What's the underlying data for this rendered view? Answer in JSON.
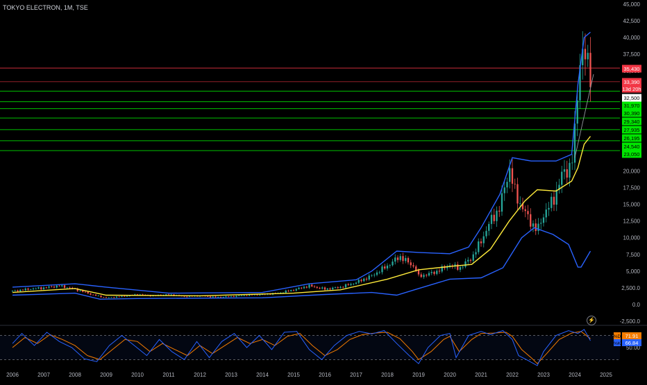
{
  "header": {
    "title": "TOKYO ELECTRON, 1M, TSE"
  },
  "colors": {
    "background": "#000000",
    "up_candle": "#26a69a",
    "down_candle": "#ef5350",
    "bollinger": "#2962ff",
    "ma": "#ffeb3b",
    "resistance": "#f23645",
    "support": "#00e600",
    "stoch_d": "#f57c00",
    "stoch_k": "#2962ff"
  },
  "icons": {
    "replay": "lightning-icon"
  },
  "chart_data": [
    {
      "type": "candlestick",
      "title": "TOKYO ELECTRON, 1M, TSE",
      "yticks": [
        "45,000",
        "42,500",
        "40,000",
        "37,500",
        "35,000",
        "32,500",
        "20,000",
        "17,500",
        "15,000",
        "12,500",
        "10,000",
        "7,500",
        "5,000",
        "2,500.0",
        "0.0",
        "-2,500.0"
      ],
      "ylim": [
        -2500,
        45000
      ],
      "xticks": [
        "2006",
        "2007",
        "2008",
        "2009",
        "2010",
        "2011",
        "2012",
        "2013",
        "2014",
        "2015",
        "2016",
        "2017",
        "2018",
        "2019",
        "2020",
        "2021",
        "2022",
        "2023",
        "2024",
        "2025"
      ],
      "xlim": [
        2006,
        2025.2
      ],
      "price_path": [
        [
          2006.0,
          2000
        ],
        [
          2006.5,
          2300
        ],
        [
          2007.0,
          2500
        ],
        [
          2007.5,
          2800
        ],
        [
          2008.0,
          2300
        ],
        [
          2008.6,
          1400
        ],
        [
          2009.0,
          1000
        ],
        [
          2009.5,
          1200
        ],
        [
          2010.0,
          1500
        ],
        [
          2010.5,
          1300
        ],
        [
          2011.0,
          1500
        ],
        [
          2011.5,
          1200
        ],
        [
          2012.0,
          1300
        ],
        [
          2012.5,
          1100
        ],
        [
          2013.0,
          1200
        ],
        [
          2013.5,
          1400
        ],
        [
          2014.0,
          1500
        ],
        [
          2014.5,
          1700
        ],
        [
          2015.0,
          2200
        ],
        [
          2015.5,
          2800
        ],
        [
          2016.0,
          2300
        ],
        [
          2016.5,
          2600
        ],
        [
          2017.0,
          3300
        ],
        [
          2017.5,
          4300
        ],
        [
          2018.0,
          5800
        ],
        [
          2018.4,
          7200
        ],
        [
          2018.9,
          5500
        ],
        [
          2019.0,
          4200
        ],
        [
          2019.5,
          4800
        ],
        [
          2020.0,
          5900
        ],
        [
          2020.3,
          5400
        ],
        [
          2020.7,
          7000
        ],
        [
          2021.0,
          9500
        ],
        [
          2021.3,
          12500
        ],
        [
          2021.6,
          14500
        ],
        [
          2021.9,
          20500
        ],
        [
          2022.1,
          16500
        ],
        [
          2022.5,
          13000
        ],
        [
          2022.8,
          11000
        ],
        [
          2023.0,
          13500
        ],
        [
          2023.3,
          15500
        ],
        [
          2023.6,
          19500
        ],
        [
          2023.9,
          21000
        ],
        [
          2024.0,
          25500
        ],
        [
          2024.1,
          33000
        ],
        [
          2024.2,
          38500
        ],
        [
          2024.35,
          36500
        ],
        [
          2024.5,
          35000
        ],
        [
          2024.58,
          33390
        ]
      ],
      "series": [
        {
          "name": "Bollinger Upper",
          "values": [
            [
              2006.0,
              2600
            ],
            [
              2008.0,
              3100
            ],
            [
              2009.0,
              2600
            ],
            [
              2011.0,
              1700
            ],
            [
              2014.0,
              1800
            ],
            [
              2015.5,
              3100
            ],
            [
              2017.0,
              3700
            ],
            [
              2017.5,
              5000
            ],
            [
              2018.3,
              8000
            ],
            [
              2019.0,
              7800
            ],
            [
              2020.0,
              7600
            ],
            [
              2020.6,
              8600
            ],
            [
              2021.0,
              11500
            ],
            [
              2021.6,
              16500
            ],
            [
              2022.0,
              22000
            ],
            [
              2022.6,
              21500
            ],
            [
              2023.4,
              21500
            ],
            [
              2023.9,
              22500
            ],
            [
              2024.1,
              33000
            ],
            [
              2024.3,
              40000
            ],
            [
              2024.5,
              40800
            ]
          ]
        },
        {
          "name": "Bollinger Lower",
          "values": [
            [
              2006.0,
              1400
            ],
            [
              2008.0,
              1700
            ],
            [
              2008.8,
              800
            ],
            [
              2010.0,
              900
            ],
            [
              2014.0,
              1000
            ],
            [
              2016.0,
              1500
            ],
            [
              2017.5,
              1800
            ],
            [
              2018.3,
              1400
            ],
            [
              2019.0,
              2400
            ],
            [
              2020.0,
              3800
            ],
            [
              2021.0,
              4000
            ],
            [
              2021.7,
              5500
            ],
            [
              2022.3,
              10000
            ],
            [
              2022.7,
              11500
            ],
            [
              2023.3,
              10500
            ],
            [
              2023.8,
              9000
            ],
            [
              2024.1,
              5600
            ],
            [
              2024.2,
              5600
            ],
            [
              2024.5,
              8000
            ]
          ]
        },
        {
          "name": "Moving Average",
          "values": [
            [
              2006.0,
              1800
            ],
            [
              2008.0,
              2400
            ],
            [
              2009.0,
              1400
            ],
            [
              2012.0,
              1300
            ],
            [
              2015.0,
              1700
            ],
            [
              2016.5,
              2200
            ],
            [
              2018.0,
              3800
            ],
            [
              2019.0,
              5200
            ],
            [
              2020.0,
              5700
            ],
            [
              2020.7,
              6000
            ],
            [
              2021.3,
              8300
            ],
            [
              2021.9,
              12500
            ],
            [
              2022.4,
              15500
            ],
            [
              2022.8,
              17200
            ],
            [
              2023.4,
              17000
            ],
            [
              2023.9,
              18500
            ],
            [
              2024.1,
              20500
            ],
            [
              2024.3,
              24000
            ],
            [
              2024.5,
              25200
            ]
          ]
        },
        {
          "name": "Trendline",
          "values": [
            [
              2024.0,
              22000
            ],
            [
              2024.6,
              34500
            ]
          ]
        }
      ],
      "horizontal_levels": [
        {
          "label": "35,430",
          "value": 35430,
          "kind": "resistance"
        },
        {
          "label": "33,390",
          "value": 33390,
          "kind": "current"
        },
        {
          "label": "13d 20h",
          "value": 33390,
          "kind": "countdown"
        },
        {
          "label": "32,500",
          "value": 32500,
          "kind": "tick"
        },
        {
          "label": "31,970",
          "value": 31970,
          "kind": "support"
        },
        {
          "label": "30,390",
          "value": 30390,
          "kind": "support"
        },
        {
          "label": "29,340",
          "value": 29340,
          "kind": "support"
        },
        {
          "label": "27,935",
          "value": 27935,
          "kind": "support"
        },
        {
          "label": "26,195",
          "value": 26195,
          "kind": "support"
        },
        {
          "label": "24,540",
          "value": 24540,
          "kind": "support"
        },
        {
          "label": "23,050",
          "value": 23050,
          "kind": "support"
        }
      ]
    },
    {
      "type": "line",
      "title": "",
      "ylim": [
        0,
        100
      ],
      "yticks": [
        "50.00"
      ],
      "bands": [
        80,
        20
      ],
      "series": [
        {
          "name": "%D",
          "label": "%D",
          "last_value_label": "71.91",
          "values": [
            [
              2006.0,
              50
            ],
            [
              2006.4,
              75
            ],
            [
              2006.8,
              60
            ],
            [
              2007.2,
              82
            ],
            [
              2007.6,
              70
            ],
            [
              2008.0,
              55
            ],
            [
              2008.4,
              30
            ],
            [
              2008.8,
              20
            ],
            [
              2009.2,
              45
            ],
            [
              2009.6,
              70
            ],
            [
              2010.0,
              65
            ],
            [
              2010.4,
              40
            ],
            [
              2010.8,
              60
            ],
            [
              2011.2,
              45
            ],
            [
              2011.6,
              30
            ],
            [
              2012.0,
              55
            ],
            [
              2012.4,
              35
            ],
            [
              2012.8,
              55
            ],
            [
              2013.2,
              75
            ],
            [
              2013.6,
              60
            ],
            [
              2014.0,
              70
            ],
            [
              2014.4,
              55
            ],
            [
              2014.8,
              78
            ],
            [
              2015.2,
              85
            ],
            [
              2015.6,
              55
            ],
            [
              2016.0,
              30
            ],
            [
              2016.4,
              45
            ],
            [
              2016.8,
              70
            ],
            [
              2017.2,
              82
            ],
            [
              2017.6,
              86
            ],
            [
              2018.0,
              88
            ],
            [
              2018.4,
              72
            ],
            [
              2018.8,
              40
            ],
            [
              2019.0,
              20
            ],
            [
              2019.4,
              40
            ],
            [
              2019.8,
              70
            ],
            [
              2020.0,
              78
            ],
            [
              2020.3,
              40
            ],
            [
              2020.7,
              70
            ],
            [
              2021.0,
              85
            ],
            [
              2021.4,
              86
            ],
            [
              2021.8,
              88
            ],
            [
              2022.0,
              78
            ],
            [
              2022.3,
              45
            ],
            [
              2022.6,
              25
            ],
            [
              2022.8,
              10
            ],
            [
              2023.1,
              35
            ],
            [
              2023.5,
              70
            ],
            [
              2023.9,
              86
            ],
            [
              2024.2,
              90
            ],
            [
              2024.5,
              72
            ]
          ]
        },
        {
          "name": "%K",
          "label": "%K",
          "last_value_label": "66.84",
          "values": [
            [
              2006.0,
              60
            ],
            [
              2006.3,
              85
            ],
            [
              2006.7,
              55
            ],
            [
              2007.1,
              88
            ],
            [
              2007.5,
              65
            ],
            [
              2007.9,
              50
            ],
            [
              2008.3,
              22
            ],
            [
              2008.7,
              15
            ],
            [
              2009.1,
              55
            ],
            [
              2009.5,
              80
            ],
            [
              2009.9,
              55
            ],
            [
              2010.3,
              30
            ],
            [
              2010.7,
              70
            ],
            [
              2011.1,
              40
            ],
            [
              2011.5,
              20
            ],
            [
              2011.9,
              65
            ],
            [
              2012.3,
              25
            ],
            [
              2012.7,
              65
            ],
            [
              2013.1,
              85
            ],
            [
              2013.5,
              50
            ],
            [
              2013.9,
              80
            ],
            [
              2014.3,
              45
            ],
            [
              2014.7,
              88
            ],
            [
              2015.1,
              90
            ],
            [
              2015.5,
              45
            ],
            [
              2015.9,
              20
            ],
            [
              2016.3,
              55
            ],
            [
              2016.7,
              80
            ],
            [
              2017.1,
              90
            ],
            [
              2017.5,
              84
            ],
            [
              2017.9,
              92
            ],
            [
              2018.3,
              60
            ],
            [
              2018.7,
              30
            ],
            [
              2019.0,
              10
            ],
            [
              2019.3,
              50
            ],
            [
              2019.7,
              80
            ],
            [
              2020.0,
              85
            ],
            [
              2020.2,
              25
            ],
            [
              2020.6,
              80
            ],
            [
              2021.0,
              90
            ],
            [
              2021.3,
              82
            ],
            [
              2021.7,
              92
            ],
            [
              2022.0,
              70
            ],
            [
              2022.2,
              30
            ],
            [
              2022.5,
              18
            ],
            [
              2022.8,
              5
            ],
            [
              2023.0,
              40
            ],
            [
              2023.4,
              80
            ],
            [
              2023.8,
              92
            ],
            [
              2024.1,
              85
            ],
            [
              2024.3,
              95
            ],
            [
              2024.5,
              67
            ]
          ]
        }
      ]
    }
  ]
}
